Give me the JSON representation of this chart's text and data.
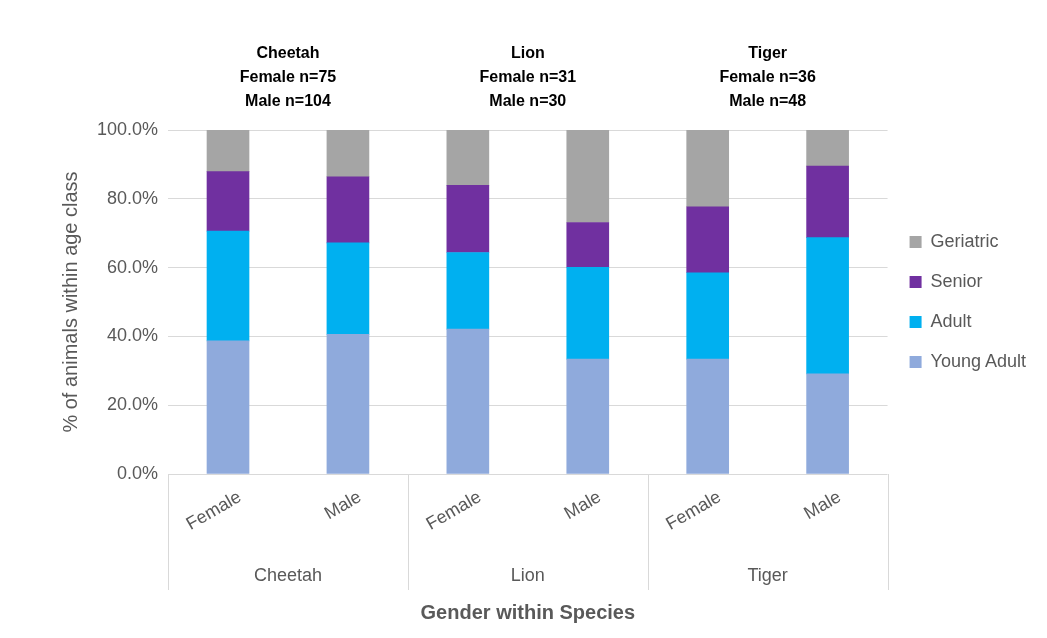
{
  "chart_data": {
    "type": "bar",
    "stacked": true,
    "categories": [
      "Female",
      "Male",
      "Female",
      "Male",
      "Female",
      "Male"
    ],
    "series": [
      {
        "name": "Young Adult",
        "color": "#8faadc",
        "values": [
          38.7,
          40.6,
          42.1,
          33.4,
          33.4,
          29.1
        ]
      },
      {
        "name": "Adult",
        "color": "#00b0f0",
        "values": [
          31.9,
          26.6,
          22.3,
          26.7,
          25.1,
          39.6
        ]
      },
      {
        "name": "Senior",
        "color": "#7030a0",
        "values": [
          17.3,
          19.2,
          19.5,
          13.0,
          19.2,
          20.8
        ]
      },
      {
        "name": "Geriatric",
        "color": "#a5a5a5",
        "values": [
          12.1,
          13.6,
          16.1,
          26.9,
          22.3,
          10.5
        ]
      }
    ],
    "ylim": [
      0,
      100
    ],
    "yticks": [
      {
        "value": 0,
        "label": "0.0%"
      },
      {
        "value": 20,
        "label": "20.0%"
      },
      {
        "value": 40,
        "label": "40.0%"
      },
      {
        "value": 60,
        "label": "60.0%"
      },
      {
        "value": 80,
        "label": "80.0%"
      },
      {
        "value": 100,
        "label": "100.0%"
      }
    ],
    "ylabel": "% of animals within age class",
    "xlabel": "Gender within Species",
    "grid": "y",
    "legend": "right",
    "annotations": [
      "Cheetah\nFemale n=75\nMale n=104",
      "Lion\nFemale n=31\nMale n=30",
      "Tiger\nFemale n=36\nMale n=48",
      "Cheetah",
      "Lion",
      "Tiger"
    ]
  }
}
